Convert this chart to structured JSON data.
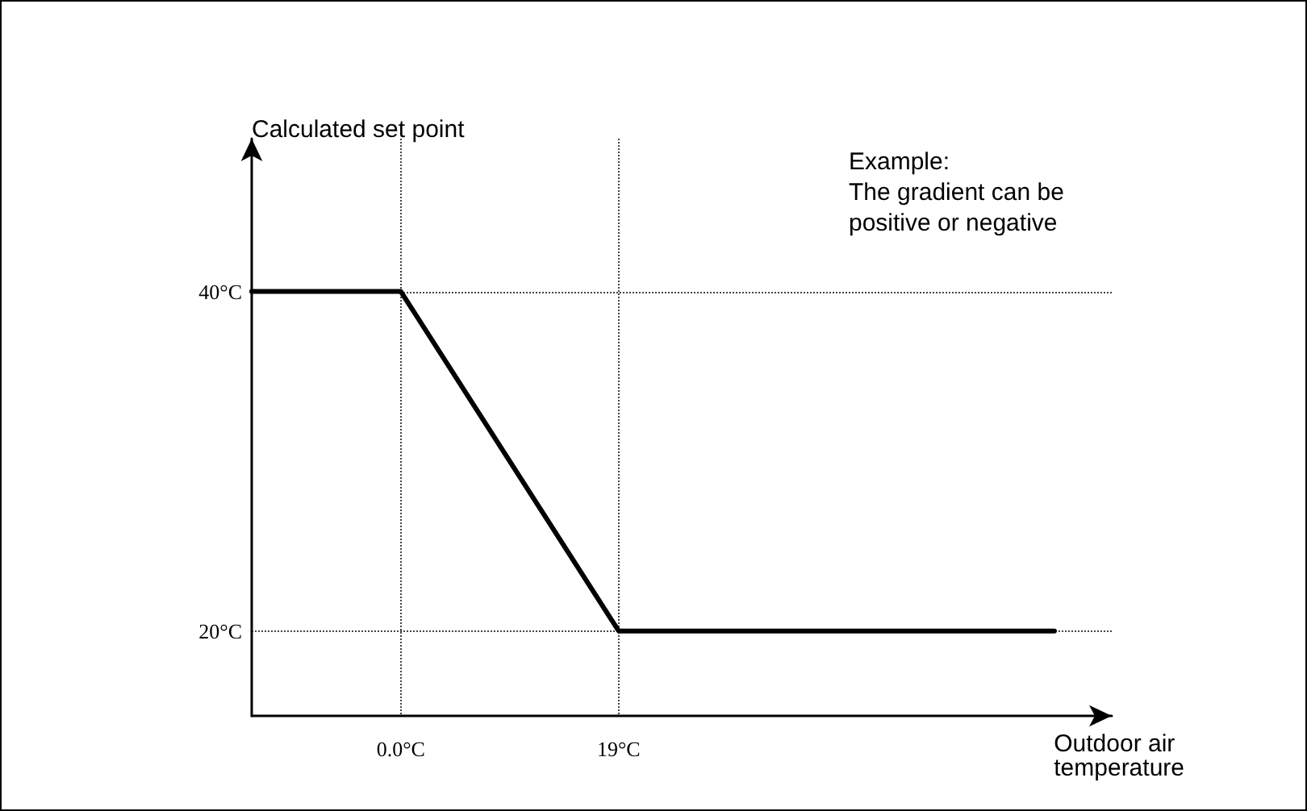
{
  "chart_data": {
    "type": "line",
    "xlabel": "Outdoor air\ntemperature",
    "ylabel": "Calculated set point",
    "annotations": [
      "Example:\nThe gradient can be\npositive or negative"
    ],
    "x": [
      -13,
      0,
      19,
      57
    ],
    "series": [
      {
        "color": "#000000",
        "values": [
          40,
          40,
          20,
          20
        ]
      }
    ],
    "xlim": [
      -13,
      62
    ],
    "ylim": [
      15,
      49
    ],
    "xticks": [
      {
        "value": 0,
        "label": "0.0°C"
      },
      {
        "value": 19,
        "label": "19°C"
      }
    ],
    "yticks": [
      {
        "value": 20,
        "label": "20°C"
      },
      {
        "value": 40,
        "label": "40°C"
      }
    ],
    "grid": true,
    "marker": "none",
    "line_style": "solid"
  }
}
